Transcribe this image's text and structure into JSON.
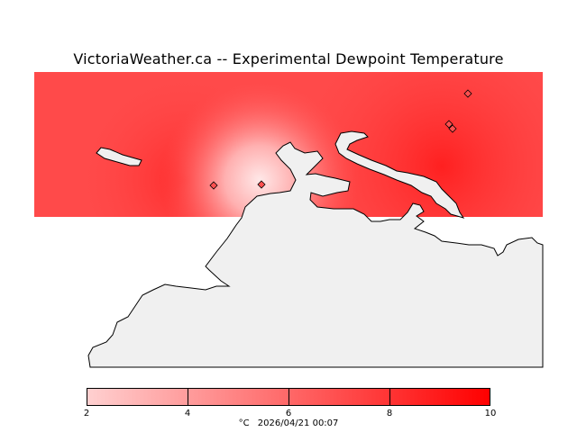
{
  "title": "VictoriaWeather.ca -- Experimental Dewpoint Temperature",
  "map": {
    "field_colors": [
      "#ffd4d4",
      "#ff0000"
    ],
    "land_color": "#f0f0f0",
    "station_marker": "diamond-icon"
  },
  "colorbar": {
    "min": 2,
    "max": 10,
    "ticks": [
      "2",
      "4",
      "6",
      "8",
      "10"
    ],
    "unit": "°C",
    "timestamp": "2026/04/21 00:07"
  }
}
